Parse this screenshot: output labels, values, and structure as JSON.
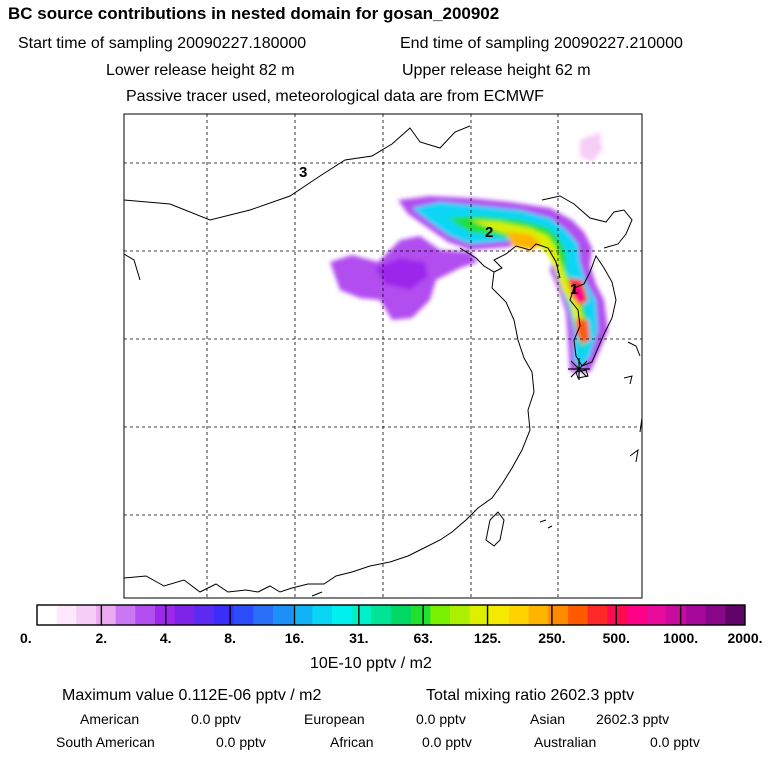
{
  "header": {
    "title": "BC  source contributions in nested domain for gosan_200902",
    "start_time": "Start time of sampling 20090227.180000",
    "end_time": "End time of sampling 20090227.210000",
    "lower_release": "Lower release height   82 m",
    "upper_release": "Upper release height   62 m",
    "tracer_note": "Passive tracer used, meteorological data are from ECMWF"
  },
  "map": {
    "markers": [
      "1",
      "2",
      "3"
    ],
    "receptor": "gosan"
  },
  "colorbar": {
    "tick_labels": [
      "0.",
      "2.",
      "4.",
      "8.",
      "16.",
      "31.",
      "63.",
      "125.",
      "250.",
      "500.",
      "1000.",
      "2000."
    ],
    "colors": [
      "#ffffff",
      "#fde8fc",
      "#f6cdf6",
      "#ecaaf0",
      "#c977f2",
      "#b24ef0",
      "#9d28ec",
      "#7e23e8",
      "#5c2af0",
      "#3b2ef8",
      "#2d4cfb",
      "#2a6ff8",
      "#1d8ff8",
      "#12b2f6",
      "#08d6f4",
      "#00f0f0",
      "#00f0c8",
      "#00e496",
      "#00d864",
      "#22e032",
      "#78f000",
      "#aaf000",
      "#dcf000",
      "#f4ea00",
      "#ffd200",
      "#ffb400",
      "#ff8c00",
      "#ff5a00",
      "#ff2828",
      "#ff0a50",
      "#ff0088",
      "#e80a9a",
      "#c80aa0",
      "#a8089a",
      "#880688",
      "#600468"
    ],
    "unit_label": "10E-10 pptv / m2"
  },
  "summary": {
    "maximum": "Maximum value  0.112E-06 pptv / m2",
    "total": "Total mixing ratio      2602.3 pptv",
    "american_label": "American",
    "american_value": "0.0 pptv",
    "european_label": "European",
    "european_value": "0.0 pptv",
    "asian_label": "Asian",
    "asian_value": "2602.3 pptv",
    "southamerican_label": "South American",
    "southamerican_value": "0.0 pptv",
    "african_label": "African",
    "african_value": "0.0 pptv",
    "australian_label": "Australian",
    "australian_value": "0.0 pptv"
  }
}
